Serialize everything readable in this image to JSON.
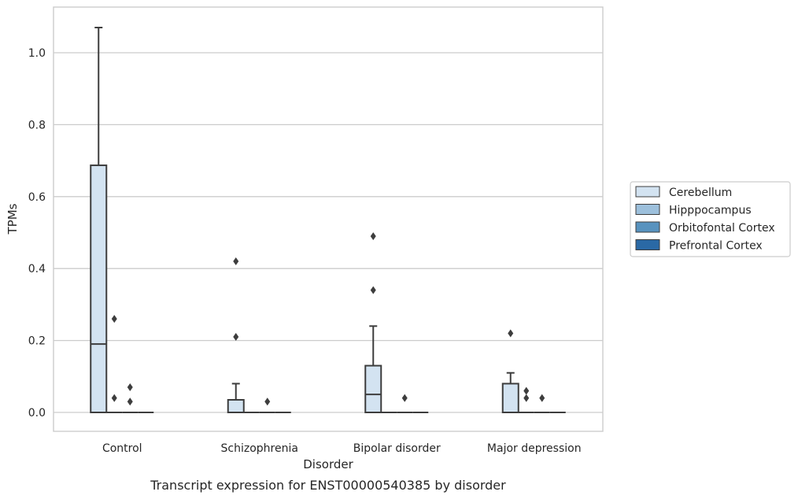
{
  "chart_data": {
    "type": "boxplot",
    "title": "",
    "caption": "Transcript expression for ENST00000540385 by disorder",
    "xlabel": "Disorder",
    "ylabel": "TPMs",
    "ylim": [
      -0.05,
      1.13
    ],
    "yticks": [
      0.0,
      0.2,
      0.4,
      0.6,
      0.8,
      1.0
    ],
    "ytick_labels": [
      "0.0",
      "0.2",
      "0.4",
      "0.6",
      "0.8",
      "1.0"
    ],
    "grid": "horizontal",
    "legend_position": "right",
    "categories": [
      "Control",
      "Schizophrenia",
      "Bipolar disorder",
      "Major depression"
    ],
    "series": [
      {
        "name": "Cerebellum",
        "color": "#d3e3f1",
        "boxes": [
          {
            "q1": 0.0,
            "median": 0.19,
            "q3": 0.687,
            "whisker_low": 0.0,
            "whisker_high": 1.07,
            "outliers": []
          },
          {
            "q1": 0.0,
            "median": 0.0,
            "q3": 0.035,
            "whisker_low": 0.0,
            "whisker_high": 0.08,
            "outliers": [
              0.21,
              0.42
            ]
          },
          {
            "q1": 0.0,
            "median": 0.05,
            "q3": 0.13,
            "whisker_low": 0.0,
            "whisker_high": 0.24,
            "outliers": [
              0.34,
              0.49
            ]
          },
          {
            "q1": 0.0,
            "median": 0.0,
            "q3": 0.08,
            "whisker_low": 0.0,
            "whisker_high": 0.11,
            "outliers": [
              0.22
            ]
          }
        ]
      },
      {
        "name": "Hipppocampus",
        "color": "#9dc0dc",
        "boxes": [
          {
            "q1": 0.0,
            "median": 0.0,
            "q3": 0.0,
            "whisker_low": 0.0,
            "whisker_high": 0.0,
            "outliers": [
              0.04,
              0.26
            ]
          },
          {
            "q1": 0.0,
            "median": 0.0,
            "q3": 0.0,
            "whisker_low": 0.0,
            "whisker_high": 0.0,
            "outliers": []
          },
          {
            "q1": 0.0,
            "median": 0.0,
            "q3": 0.0,
            "whisker_low": 0.0,
            "whisker_high": 0.0,
            "outliers": []
          },
          {
            "q1": 0.0,
            "median": 0.0,
            "q3": 0.0,
            "whisker_low": 0.0,
            "whisker_high": 0.0,
            "outliers": [
              0.04,
              0.06
            ]
          }
        ]
      },
      {
        "name": "Orbitofontal Cortex",
        "color": "#5893bf",
        "boxes": [
          {
            "q1": 0.0,
            "median": 0.0,
            "q3": 0.0,
            "whisker_low": 0.0,
            "whisker_high": 0.0,
            "outliers": [
              0.03,
              0.07
            ]
          },
          {
            "q1": 0.0,
            "median": 0.0,
            "q3": 0.0,
            "whisker_low": 0.0,
            "whisker_high": 0.0,
            "outliers": [
              0.03
            ]
          },
          {
            "q1": 0.0,
            "median": 0.0,
            "q3": 0.0,
            "whisker_low": 0.0,
            "whisker_high": 0.0,
            "outliers": [
              0.04
            ]
          },
          {
            "q1": 0.0,
            "median": 0.0,
            "q3": 0.0,
            "whisker_low": 0.0,
            "whisker_high": 0.0,
            "outliers": [
              0.04
            ]
          }
        ]
      },
      {
        "name": "Prefrontal Cortex",
        "color": "#2a69a5",
        "boxes": [
          {
            "q1": 0.0,
            "median": 0.0,
            "q3": 0.0,
            "whisker_low": 0.0,
            "whisker_high": 0.0,
            "outliers": []
          },
          {
            "q1": 0.0,
            "median": 0.0,
            "q3": 0.0,
            "whisker_low": 0.0,
            "whisker_high": 0.0,
            "outliers": []
          },
          {
            "q1": 0.0,
            "median": 0.0,
            "q3": 0.0,
            "whisker_low": 0.0,
            "whisker_high": 0.0,
            "outliers": []
          },
          {
            "q1": 0.0,
            "median": 0.0,
            "q3": 0.0,
            "whisker_low": 0.0,
            "whisker_high": 0.0,
            "outliers": []
          }
        ]
      }
    ]
  }
}
